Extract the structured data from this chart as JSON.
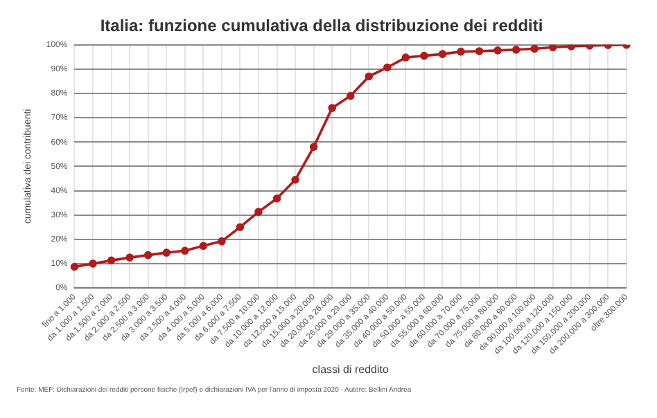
{
  "chart_data": {
    "type": "line",
    "title": "Italia: funzione cumulativa della distribuzione dei redditi",
    "xlabel": "classi di reddito",
    "ylabel": "cumulativa dei contribuenti",
    "categories": [
      "fino a 1.000",
      "da 1.000 a 1.500",
      "da 1.500 a 2.000",
      "da 2.000 a 2.500",
      "da 2.500 a 3.000",
      "da 3.000 a 3.500",
      "da 3.500 a 4.000",
      "da 4.000 a 5.000",
      "da 5.000 a 6.000",
      "da 6.000 a 7.500",
      "da 7.500 a 10.000",
      "da 10.000 a 12.000",
      "da 12.000 a 15.000",
      "da 15.000 a 20.000",
      "da 20.000 a 26.000",
      "da 26.000 a 29.000",
      "da 29.000 a 35.000",
      "da 35.000 a 40.000",
      "da 40.000 a 50.000",
      "da 50.000 a 55.000",
      "da 55.000 a 60.000",
      "da 60.000 a 70.000",
      "da 70.000 a 75.000",
      "da 75.000 a 80.000",
      "da 80.000 a 90.000",
      "da 90.000 a 100.000",
      "da 100.000 a 120.000",
      "da 120.000 a 150.000",
      "da 150.000 a 200.000",
      "da 200.000 a 300.000",
      "oltre 300.000"
    ],
    "series": [
      {
        "color": "#b01c1c",
        "values": [
          8.7,
          10,
          11.3,
          12.5,
          13.5,
          14.5,
          15.3,
          17.3,
          19.2,
          25,
          31.3,
          36.8,
          44.5,
          58,
          74,
          79,
          87,
          90.7,
          94.8,
          95.5,
          96.2,
          97.2,
          97.4,
          97.7,
          98,
          98.4,
          99,
          99.4,
          99.7,
          99.9,
          100
        ]
      }
    ],
    "ylim": [
      0,
      100
    ],
    "yticks": [
      {
        "value": 0,
        "label": "0%"
      },
      {
        "value": 10,
        "label": "10%"
      },
      {
        "value": 20,
        "label": "20%"
      },
      {
        "value": 30,
        "label": "30%"
      },
      {
        "value": 40,
        "label": "40%"
      },
      {
        "value": 50,
        "label": "50%"
      },
      {
        "value": 60,
        "label": "60%"
      },
      {
        "value": 70,
        "label": "70%"
      },
      {
        "value": 80,
        "label": "80%"
      },
      {
        "value": 90,
        "label": "90%"
      },
      {
        "value": 100,
        "label": "100%"
      }
    ],
    "grid": true,
    "legend": false,
    "marker": "circle",
    "line_style": "solid",
    "annotations": [
      "Fonte: MEF: Dichiarazioni dei redditi persone fisiche (Irpef) e dichiarazioni IVA per l'anno di imposta 2020 - Autore: Bellini Andrea"
    ]
  }
}
